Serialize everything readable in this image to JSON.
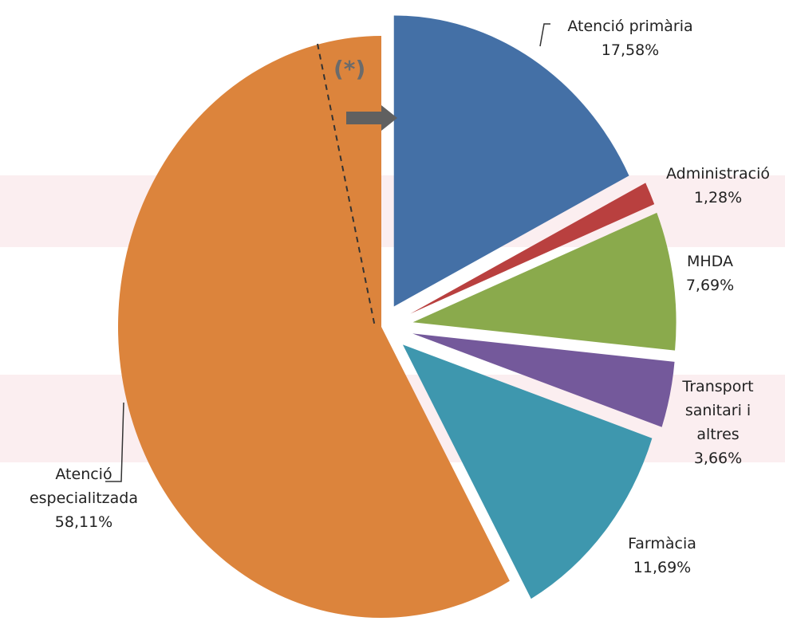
{
  "chart_data": {
    "type": "pie",
    "categories": [
      "Atenció primària",
      "Administració",
      "MHDA",
      "Transport sanitari i altres",
      "Farmàcia",
      "Atenció especialitzada"
    ],
    "values": [
      17.58,
      1.28,
      7.69,
      3.66,
      11.69,
      58.11
    ],
    "value_labels": [
      "17,58%",
      "1,28%",
      "7,69%",
      "3,66%",
      "11,69%",
      "58,11%"
    ],
    "colors": [
      "#4470a6",
      "#b9403f",
      "#8aaa4c",
      "#74599b",
      "#3e97ae",
      "#dc843c"
    ],
    "annotation": "(*)"
  }
}
